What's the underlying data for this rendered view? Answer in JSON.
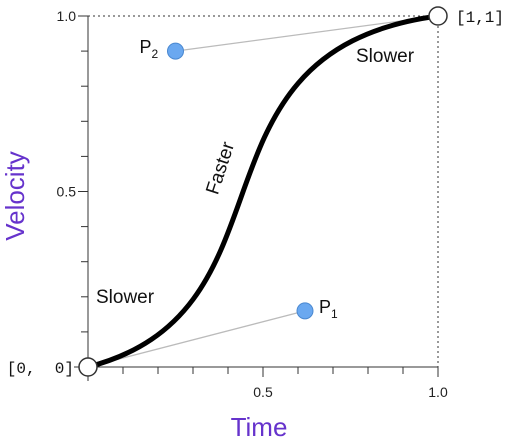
{
  "chart_data": {
    "type": "line",
    "title": "",
    "xlabel": "Time",
    "ylabel": "Velocity",
    "xlim": [
      0,
      1
    ],
    "ylim": [
      0,
      1
    ],
    "x_tick_labels": [
      "0.5",
      "1.0"
    ],
    "y_tick_labels": [
      "0.5",
      "1.0"
    ],
    "curve": {
      "kind": "cubic-bezier",
      "control_points": [
        {
          "x": 0,
          "y": 0
        },
        {
          "x": 0.62,
          "y": 0.16
        },
        {
          "x": 0.25,
          "y": 0.9
        },
        {
          "x": 1,
          "y": 1
        }
      ]
    },
    "labeled_points": [
      {
        "name": "P",
        "sub": "1",
        "x": 0.62,
        "y": 0.16
      },
      {
        "name": "P",
        "sub": "2",
        "x": 0.25,
        "y": 0.9
      }
    ],
    "endpoint_labels": {
      "start": "[0,  0]",
      "end": "[1,1]"
    },
    "region_labels": {
      "slow_start": "Slower",
      "middle": "Faster",
      "slow_end": "Slower"
    },
    "colors": {
      "curve": "#000000",
      "control_point": "#6aa8f0",
      "axis_title": "#6633cc",
      "guide_line": "#bbbbbb"
    }
  }
}
